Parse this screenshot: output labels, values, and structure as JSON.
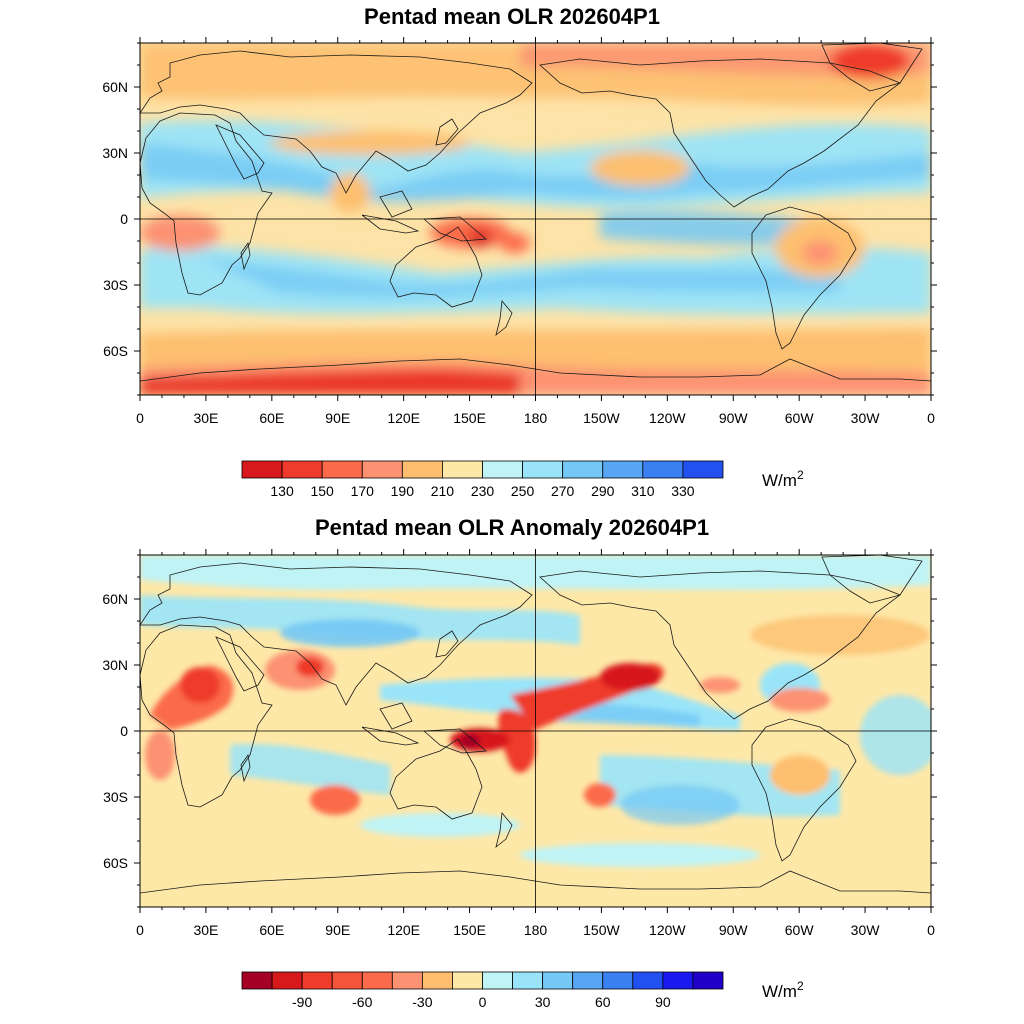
{
  "panels": [
    {
      "title": "Pentad mean OLR 202604P1",
      "field": "OLR",
      "lat_ticks": [
        "60N",
        "30N",
        "0",
        "30S",
        "60S"
      ],
      "lon_ticks": [
        "0",
        "30E",
        "60E",
        "90E",
        "120E",
        "150E",
        "180",
        "150W",
        "120W",
        "90W",
        "60W",
        "30W",
        "0"
      ],
      "colorbar": {
        "colors": [
          "#d7191c",
          "#ef3b2c",
          "#fb6a4a",
          "#fc9272",
          "#fdbf6f",
          "#fee8a8",
          "#bff3f5",
          "#99e4f9",
          "#73c8f6",
          "#56a6f4",
          "#3a80f2",
          "#2350f0"
        ],
        "labels": [
          "130",
          "150",
          "170",
          "190",
          "210",
          "230",
          "250",
          "270",
          "290",
          "310",
          "330"
        ],
        "unit": "W/m",
        "unit_sup": "2"
      }
    },
    {
      "title": "Pentad mean OLR Anomaly 202604P1",
      "field": "OLR anomaly",
      "lat_ticks": [
        "60N",
        "30N",
        "0",
        "30S",
        "60S"
      ],
      "lon_ticks": [
        "0",
        "30E",
        "60E",
        "90E",
        "120E",
        "150E",
        "180",
        "150W",
        "120W",
        "90W",
        "60W",
        "30W",
        "0"
      ],
      "colorbar": {
        "colors": [
          "#a50026",
          "#d7191c",
          "#ef3b2c",
          "#f4543a",
          "#fb6a4a",
          "#fc9272",
          "#fdbf6f",
          "#fee8a8",
          "#bff3f5",
          "#99e4f9",
          "#73c8f6",
          "#56a6f4",
          "#3a80f2",
          "#2350f0",
          "#1a1af0",
          "#2000c8"
        ],
        "labels": [
          "-90",
          "-60",
          "-30",
          "0",
          "30",
          "60",
          "90"
        ],
        "unit": "W/m",
        "unit_sup": "2"
      }
    }
  ],
  "colors": {
    "olr_base": "#fde3a7",
    "anom_base": "#fee8a8",
    "coast": "#1a1a1a"
  }
}
